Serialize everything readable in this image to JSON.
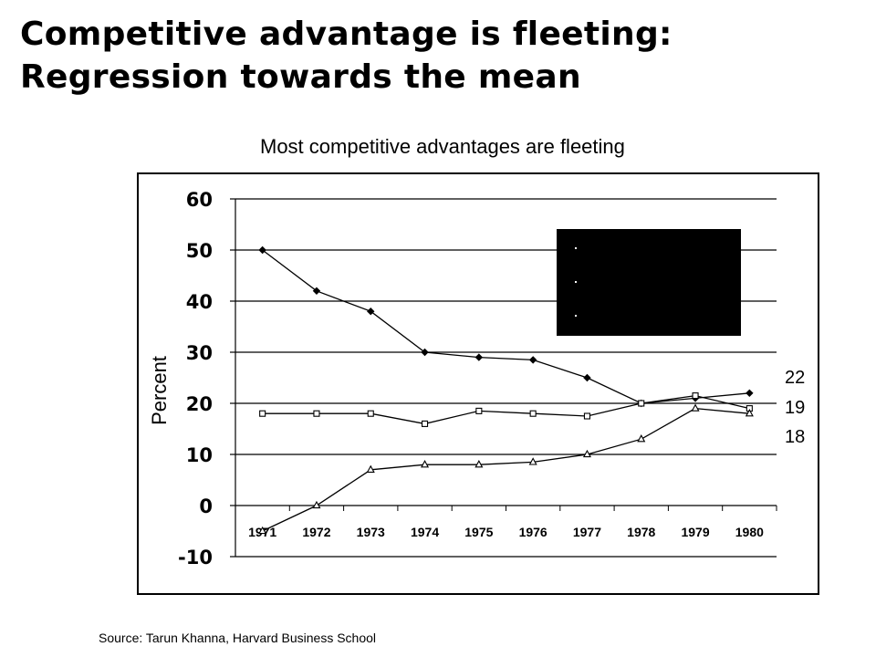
{
  "slide": {
    "title_line1": "Competitive advantage is fleeting:",
    "title_line2": "Regression towards the mean",
    "source": "Source: Tarun Khanna, Harvard Business School"
  },
  "chart_data": {
    "type": "line",
    "title": "Most competitive advantages are fleeting",
    "xlabel": "",
    "ylabel": "Percent",
    "categories": [
      "1971",
      "1972",
      "1973",
      "1974",
      "1975",
      "1976",
      "1977",
      "1978",
      "1979",
      "1980"
    ],
    "yticks": [
      "60",
      "50",
      "40",
      "30",
      "20",
      "10",
      "0",
      "-10"
    ],
    "ylim": [
      -10,
      60
    ],
    "grid": "horizontal",
    "legend": {
      "placement": "top-right",
      "background": "#000000",
      "entries": [
        "",
        "",
        ""
      ]
    },
    "series": [
      {
        "marker": "diamond",
        "values": [
          50,
          42,
          38,
          30,
          29,
          28.5,
          25,
          20,
          21,
          22
        ]
      },
      {
        "marker": "square",
        "values": [
          18,
          18,
          18,
          16,
          18.5,
          18,
          17.5,
          20,
          21.5,
          19
        ]
      },
      {
        "marker": "triangle",
        "values": [
          -5,
          0,
          7,
          8,
          8,
          8.5,
          10,
          13,
          19,
          18
        ]
      }
    ],
    "end_labels": [
      "22",
      "19",
      "18"
    ]
  }
}
